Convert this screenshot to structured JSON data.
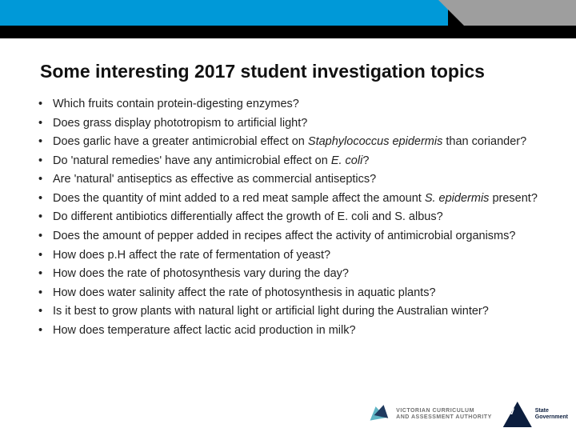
{
  "header": {
    "black_color": "#000000",
    "blue_color": "#0099d8",
    "grey_color": "#9e9e9e"
  },
  "title": "Some interesting 2017 student investigation topics",
  "bullets": [
    {
      "pre": "Which fruits contain protein-digesting enzymes?",
      "it": "",
      "post": ""
    },
    {
      "pre": "Does grass display phototropism to artificial light?",
      "it": "",
      "post": ""
    },
    {
      "pre": "Does garlic have a greater antimicrobial effect on ",
      "it": "Staphylococcus epidermis",
      "post": " than coriander?"
    },
    {
      "pre": "Do 'natural remedies' have any antimicrobial effect on ",
      "it": "E. coli",
      "post": "?"
    },
    {
      "pre": "Are 'natural' antiseptics as effective as commercial antiseptics?",
      "it": "",
      "post": ""
    },
    {
      "pre": "Does the quantity of mint added to a red meat sample affect the amount ",
      "it": "S. epidermis",
      "post": " present?"
    },
    {
      "pre": "Do different antibiotics differentially affect the growth of E. coli and S. albus?",
      "it": "",
      "post": ""
    },
    {
      "pre": "Does the amount of pepper added in recipes affect the activity of antimicrobial organisms?",
      "it": "",
      "post": ""
    },
    {
      "pre": "How does p.H affect the rate of fermentation of yeast?",
      "it": "",
      "post": ""
    },
    {
      "pre": "How does the rate of photosynthesis vary during the day?",
      "it": "",
      "post": ""
    },
    {
      "pre": "How does water salinity affect the rate of photosynthesis in aquatic plants?",
      "it": "",
      "post": ""
    },
    {
      "pre": "Is it best to grow plants with natural light or artificial light during the Australian winter?",
      "it": "",
      "post": ""
    },
    {
      "pre": "How does temperature affect lactic acid production in milk?",
      "it": "",
      "post": ""
    }
  ],
  "footer": {
    "vcaa_line1": "VICTORIAN CURRICULUM",
    "vcaa_line2": "AND ASSESSMENT AUTHORITY",
    "vic_line1": "State",
    "vic_line2": "Government"
  }
}
